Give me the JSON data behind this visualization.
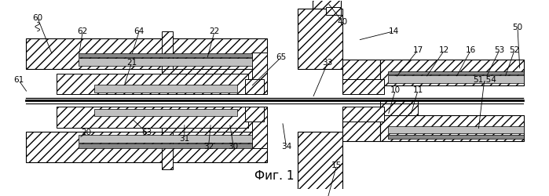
{
  "title": "Фиг. 1",
  "bg_color": "#ffffff",
  "fig_width": 6.99,
  "fig_height": 2.5,
  "dpi": 100
}
